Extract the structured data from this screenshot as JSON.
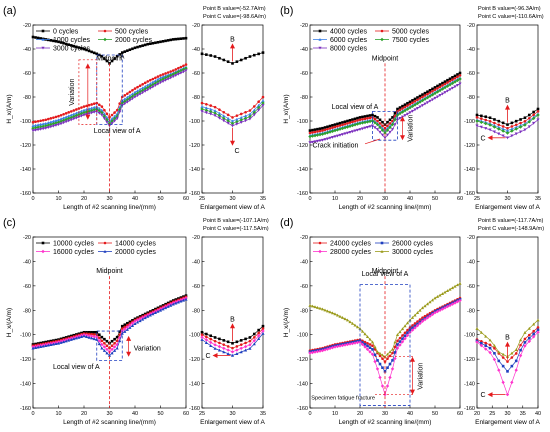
{
  "chart_data": [
    {
      "panel": "(a)",
      "type": "line",
      "ylabel": "H_x/(A/m)",
      "xlabel": "Length of #2 scanning line/(mm)",
      "ylim": [
        -160,
        -20
      ],
      "yticks": [
        -20,
        -40,
        -60,
        -80,
        -100,
        -120,
        -140,
        -160
      ],
      "xlim": [
        0,
        60
      ],
      "xticks": [
        0,
        10,
        20,
        30,
        40,
        50,
        60
      ],
      "legend_ncol": 2,
      "series": [
        {
          "name": "0 cycles",
          "color": "#000000",
          "marker": "square",
          "x": [
            0,
            5,
            10,
            15,
            20,
            25,
            27,
            30,
            33,
            35,
            40,
            45,
            50,
            55,
            60
          ],
          "values": [
            -30,
            -32,
            -34,
            -37,
            -40,
            -44,
            -46,
            -52,
            -46,
            -43,
            -39,
            -36,
            -34,
            -32,
            -31
          ]
        },
        {
          "name": "500 cycles",
          "color": "#e41a1c",
          "marker": "circle",
          "x": [
            0,
            5,
            10,
            15,
            20,
            25,
            27,
            30,
            33,
            35,
            40,
            45,
            50,
            55,
            60
          ],
          "values": [
            -101,
            -99,
            -96,
            -92,
            -88,
            -85,
            -88,
            -97,
            -91,
            -80,
            -73,
            -67,
            -62,
            -58,
            -53
          ]
        },
        {
          "name": "1000 cycles",
          "color": "#3a7fe6",
          "marker": "triangle",
          "x": [
            0,
            5,
            10,
            15,
            20,
            25,
            27,
            30,
            33,
            35,
            40,
            45,
            50,
            55,
            60
          ],
          "values": [
            -104,
            -102,
            -99,
            -95,
            -91,
            -88,
            -91,
            -100,
            -94,
            -83,
            -76,
            -70,
            -64,
            -60,
            -55
          ]
        },
        {
          "name": "2000 cycles",
          "color": "#2ca02c",
          "marker": "diamond",
          "x": [
            0,
            5,
            10,
            15,
            20,
            25,
            27,
            30,
            33,
            35,
            40,
            45,
            50,
            55,
            60
          ],
          "values": [
            -106,
            -104,
            -101,
            -97,
            -93,
            -90,
            -93,
            -102,
            -96,
            -85,
            -78,
            -72,
            -66,
            -61,
            -56
          ]
        },
        {
          "name": "3000 cycles",
          "color": "#7b2fbe",
          "marker": "triangle-down",
          "x": [
            0,
            5,
            10,
            15,
            20,
            25,
            27,
            30,
            33,
            35,
            40,
            45,
            50,
            55,
            60
          ],
          "values": [
            -108,
            -106,
            -103,
            -99,
            -95,
            -92,
            -95,
            -104,
            -98,
            -87,
            -80,
            -74,
            -68,
            -63,
            -58
          ]
        }
      ],
      "annotations": {
        "midpoint": "Midpoint",
        "variation": "Variation",
        "local_view": "Local view of A",
        "box_label": "A"
      },
      "x_value_label": "Enlargement view of A",
      "enlargement": {
        "xlim": [
          25,
          35
        ],
        "xticks": [
          25,
          30,
          35
        ],
        "ylim": [
          -160,
          -20
        ],
        "point_b": "Point B value=(-52.7A/m)",
        "point_c": "Point C value=(-98.6A/m)",
        "b_label": "B",
        "c_label": "C"
      }
    },
    {
      "panel": "(b)",
      "type": "line",
      "ylabel": "H_x/(A/m)",
      "xlabel": "Length of #2 scanning line/(mm)",
      "ylim": [
        -160,
        -20
      ],
      "yticks": [
        -20,
        -40,
        -60,
        -80,
        -100,
        -120,
        -140,
        -160
      ],
      "xlim": [
        0,
        60
      ],
      "xticks": [
        0,
        10,
        20,
        30,
        40,
        50,
        60
      ],
      "legend_ncol": 2,
      "series": [
        {
          "name": "4000 cycles",
          "color": "#000000",
          "marker": "square",
          "x": [
            0,
            5,
            10,
            15,
            20,
            25,
            27,
            30,
            33,
            35,
            40,
            45,
            50,
            55,
            60
          ],
          "values": [
            -108,
            -106,
            -103,
            -100,
            -97,
            -95,
            -97,
            -103,
            -97,
            -90,
            -84,
            -78,
            -72,
            -66,
            -60
          ]
        },
        {
          "name": "5000 cycles",
          "color": "#e41a1c",
          "marker": "circle",
          "x": [
            0,
            5,
            10,
            15,
            20,
            25,
            27,
            30,
            33,
            35,
            40,
            45,
            50,
            55,
            60
          ],
          "values": [
            -110,
            -108,
            -105,
            -102,
            -99,
            -97,
            -100,
            -106,
            -100,
            -92,
            -86,
            -80,
            -74,
            -68,
            -62
          ]
        },
        {
          "name": "6000 cycles",
          "color": "#3a7fe6",
          "marker": "triangle",
          "x": [
            0,
            5,
            10,
            15,
            20,
            25,
            27,
            30,
            33,
            35,
            40,
            45,
            50,
            55,
            60
          ],
          "values": [
            -112,
            -110,
            -107,
            -104,
            -101,
            -99,
            -102,
            -108,
            -102,
            -94,
            -88,
            -82,
            -76,
            -70,
            -64
          ]
        },
        {
          "name": "7500 cycles",
          "color": "#2ca02c",
          "marker": "diamond",
          "x": [
            0,
            5,
            10,
            15,
            20,
            25,
            27,
            30,
            33,
            35,
            40,
            45,
            50,
            55,
            60
          ],
          "values": [
            -113,
            -111,
            -108,
            -105,
            -102,
            -100,
            -103,
            -110,
            -103,
            -95,
            -89,
            -83,
            -77,
            -71,
            -65
          ]
        },
        {
          "name": "8000 cycles",
          "color": "#7b2fbe",
          "marker": "triangle-down",
          "x": [
            0,
            5,
            10,
            15,
            20,
            25,
            27,
            30,
            33,
            35,
            40,
            45,
            50,
            55,
            60
          ],
          "values": [
            -118,
            -116,
            -113,
            -110,
            -107,
            -104,
            -107,
            -114,
            -107,
            -99,
            -93,
            -87,
            -81,
            -75,
            -69
          ]
        }
      ],
      "annotations": {
        "midpoint": "Midpoint",
        "variation": "Variation",
        "local_view": "Local view of A",
        "crack": "Crack initiation"
      },
      "x_value_label": "Enlargement view of A",
      "enlargement": {
        "xlim": [
          25,
          35
        ],
        "xticks": [
          25,
          30,
          35
        ],
        "ylim": [
          -160,
          -20
        ],
        "point_b": "Point B value=(-96.3A/m)",
        "point_c": "Point C value=(-110.6A/m)",
        "b_label": "B",
        "c_label": "C"
      }
    },
    {
      "panel": "(c)",
      "type": "line",
      "ylabel": "H_x/(A/m)",
      "xlabel": "Length of #2 scanning line/(mm)",
      "ylim": [
        -160,
        -20
      ],
      "yticks": [
        -20,
        -40,
        -60,
        -80,
        -100,
        -120,
        -140,
        -160
      ],
      "xlim": [
        0,
        60
      ],
      "xticks": [
        0,
        10,
        20,
        30,
        40,
        50,
        60
      ],
      "legend_ncol": 2,
      "series": [
        {
          "name": "10000 cycles",
          "color": "#000000",
          "marker": "square",
          "x": [
            0,
            5,
            10,
            15,
            20,
            25,
            27,
            30,
            33,
            35,
            40,
            45,
            50,
            55,
            60
          ],
          "values": [
            -108,
            -106,
            -104,
            -101,
            -98,
            -98,
            -102,
            -107,
            -102,
            -93,
            -87,
            -82,
            -77,
            -72,
            -68
          ]
        },
        {
          "name": "14000 cycles",
          "color": "#e41a1c",
          "marker": "circle",
          "x": [
            0,
            5,
            10,
            15,
            20,
            25,
            27,
            30,
            33,
            35,
            40,
            45,
            50,
            55,
            60
          ],
          "values": [
            -109,
            -107,
            -105,
            -102,
            -99,
            -100,
            -105,
            -111,
            -105,
            -95,
            -88,
            -83,
            -78,
            -73,
            -69
          ]
        },
        {
          "name": "16000 cycles",
          "color": "#ff33cc",
          "marker": "diamond",
          "x": [
            0,
            5,
            10,
            15,
            20,
            25,
            27,
            30,
            33,
            35,
            40,
            45,
            50,
            55,
            60
          ],
          "values": [
            -110,
            -108,
            -106,
            -103,
            -100,
            -102,
            -108,
            -114,
            -108,
            -97,
            -89,
            -84,
            -79,
            -74,
            -70
          ]
        },
        {
          "name": "20000 cycles",
          "color": "#1f3fbf",
          "marker": "triangle",
          "x": [
            0,
            5,
            10,
            15,
            20,
            25,
            27,
            30,
            33,
            35,
            40,
            45,
            50,
            55,
            60
          ],
          "values": [
            -111,
            -109,
            -107,
            -104,
            -101,
            -104,
            -111,
            -117,
            -111,
            -99,
            -91,
            -85,
            -80,
            -75,
            -71
          ]
        }
      ],
      "annotations": {
        "midpoint": "Midpoint",
        "variation": "Variation",
        "local_view": "Local view of A"
      },
      "x_value_label": "Enlargement view of A",
      "enlargement": {
        "xlim": [
          25,
          35
        ],
        "xticks": [
          25,
          30,
          35
        ],
        "ylim": [
          -160,
          -20
        ],
        "point_b": "Point B value=(-107.1A/m)",
        "point_c": "Point C value=(-117.5A/m)",
        "b_label": "B",
        "c_label": "C"
      }
    },
    {
      "panel": "(d)",
      "type": "line",
      "ylabel": "H_x/(A/m)",
      "xlabel": "Length of #2 scanning line/(mm)",
      "ylim": [
        -160,
        -20
      ],
      "yticks": [
        -20,
        -40,
        -60,
        -80,
        -100,
        -120,
        -140,
        -160
      ],
      "xlim": [
        0,
        60
      ],
      "xticks": [
        0,
        10,
        20,
        30,
        40,
        50,
        60
      ],
      "legend_ncol": 2,
      "series": [
        {
          "name": "24000 cycles",
          "color": "#e41a1c",
          "marker": "circle",
          "x": [
            0,
            5,
            10,
            15,
            20,
            25,
            27,
            30,
            33,
            35,
            40,
            45,
            50,
            55,
            60
          ],
          "values": [
            -113,
            -111,
            -108,
            -106,
            -104,
            -109,
            -115,
            -122,
            -115,
            -105,
            -94,
            -86,
            -80,
            -75,
            -70
          ]
        },
        {
          "name": "26000 cycles",
          "color": "#1f3fbf",
          "marker": "square",
          "x": [
            0,
            5,
            10,
            15,
            20,
            25,
            27,
            30,
            33,
            35,
            40,
            45,
            50,
            55,
            60
          ],
          "values": [
            -114,
            -112,
            -109,
            -107,
            -105,
            -112,
            -121,
            -130,
            -121,
            -108,
            -96,
            -88,
            -81,
            -76,
            -71
          ]
        },
        {
          "name": "28000 cycles",
          "color": "#ff33cc",
          "marker": "diamond",
          "x": [
            0,
            5,
            10,
            15,
            20,
            25,
            27,
            30,
            33,
            35,
            40,
            45,
            50,
            55,
            60
          ],
          "values": [
            -115,
            -113,
            -110,
            -108,
            -106,
            -116,
            -128,
            -149,
            -128,
            -111,
            -98,
            -89,
            -82,
            -77,
            -72
          ]
        },
        {
          "name": "30000 cycles",
          "color": "#9a9a1a",
          "marker": "triangle",
          "x": [
            0,
            5,
            10,
            15,
            20,
            25,
            27,
            30,
            33,
            35,
            40,
            45,
            50,
            55,
            60
          ],
          "values": [
            -76,
            -79,
            -83,
            -88,
            -95,
            -106,
            -114,
            -118,
            -112,
            -100,
            -88,
            -78,
            -70,
            -64,
            -58
          ]
        }
      ],
      "annotations": {
        "midpoint": "Midpoint",
        "variation": "Variation",
        "local_view": "Local view of A",
        "fracture": "Specimen fatigue fracture"
      },
      "x_value_label": "Enlargement view of A",
      "enlargement": {
        "xlim": [
          20,
          40
        ],
        "xticks": [
          20,
          25,
          30,
          35,
          40
        ],
        "ylim": [
          -160,
          -20
        ],
        "point_b": "Point B value=(-117.7A/m)",
        "point_c": "Point C value=(-148.9A/m)",
        "b_label": "B",
        "c_label": "C"
      }
    }
  ]
}
